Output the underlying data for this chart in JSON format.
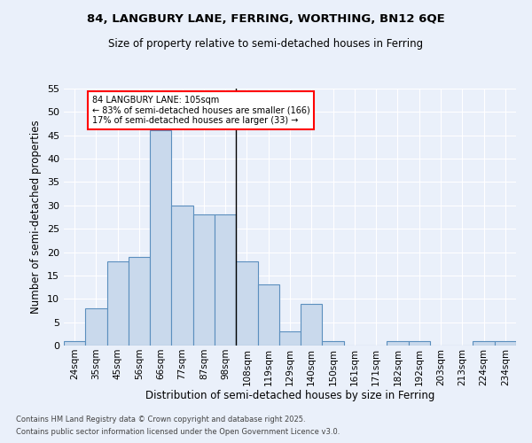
{
  "title": "84, LANGBURY LANE, FERRING, WORTHING, BN12 6QE",
  "subtitle": "Size of property relative to semi-detached houses in Ferring",
  "xlabel": "Distribution of semi-detached houses by size in Ferring",
  "ylabel": "Number of semi-detached properties",
  "categories": [
    "24sqm",
    "35sqm",
    "45sqm",
    "56sqm",
    "66sqm",
    "77sqm",
    "87sqm",
    "98sqm",
    "108sqm",
    "119sqm",
    "129sqm",
    "140sqm",
    "150sqm",
    "161sqm",
    "171sqm",
    "182sqm",
    "192sqm",
    "203sqm",
    "213sqm",
    "224sqm",
    "234sqm"
  ],
  "values": [
    1,
    8,
    18,
    19,
    46,
    30,
    28,
    28,
    18,
    13,
    3,
    9,
    1,
    0,
    0,
    1,
    1,
    0,
    0,
    1,
    1
  ],
  "bar_color": "#c9d9ec",
  "bar_edge_color": "#5b8fbe",
  "highlight_index": 8,
  "annotation_text_line1": "84 LANGBURY LANE: 105sqm",
  "annotation_text_line2": "← 83% of semi-detached houses are smaller (166)",
  "annotation_text_line3": "17% of semi-detached houses are larger (33) →",
  "ylim": [
    0,
    55
  ],
  "yticks": [
    0,
    5,
    10,
    15,
    20,
    25,
    30,
    35,
    40,
    45,
    50,
    55
  ],
  "background_color": "#eaf0fa",
  "grid_color": "#ffffff",
  "footer_line1": "Contains HM Land Registry data © Crown copyright and database right 2025.",
  "footer_line2": "Contains public sector information licensed under the Open Government Licence v3.0."
}
